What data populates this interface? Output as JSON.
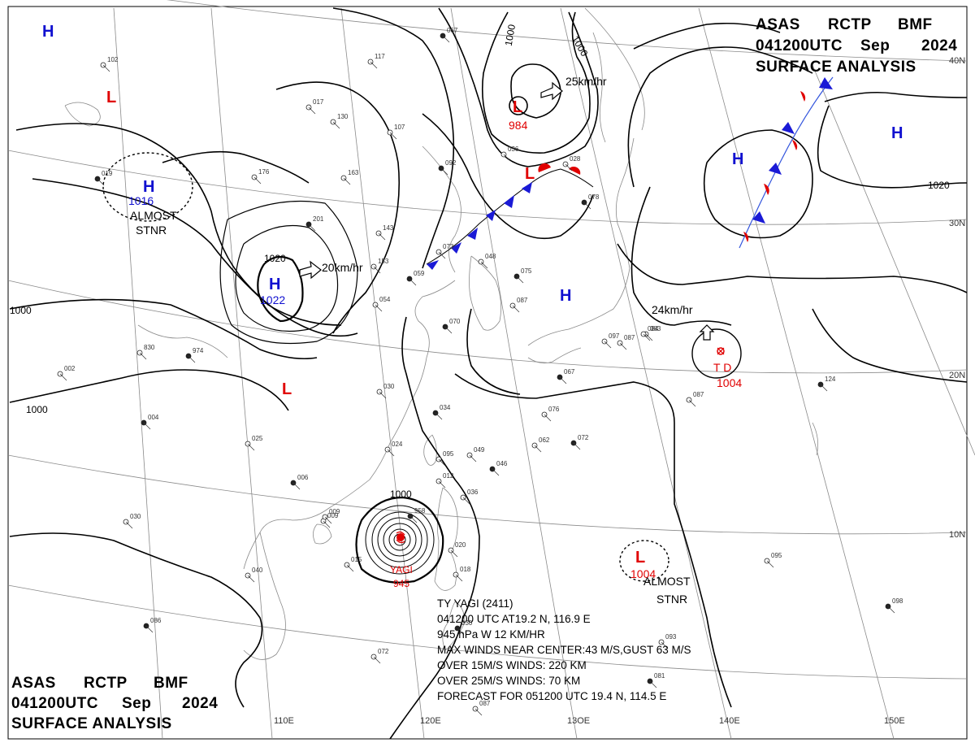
{
  "header": {
    "line1": [
      "ASAS",
      "RCTP",
      "BMF"
    ],
    "line2": [
      "041200UTC",
      "Sep",
      "2024"
    ],
    "line3": "SURFACE  ANALYSIS"
  },
  "lat_labels": [
    "40N",
    "30N",
    "20N",
    "10N"
  ],
  "lon_labels": [
    "110E",
    "120E",
    "13OE",
    "140E",
    "150E"
  ],
  "isobar_labels": [
    "1000",
    "1000",
    "1000",
    "1000",
    "1020",
    "1020",
    "1000"
  ],
  "systems": {
    "highs": [
      {
        "id": "h-nw",
        "label": "H"
      },
      {
        "id": "h-1016",
        "label": "H",
        "pressure": "1016"
      },
      {
        "id": "h-1022",
        "label": "H",
        "pressure": "1022"
      },
      {
        "id": "h-japan",
        "label": "H"
      },
      {
        "id": "h-pac1",
        "label": "H"
      },
      {
        "id": "h-pac2",
        "label": "H"
      }
    ],
    "lows": [
      {
        "id": "l-nw",
        "label": "L"
      },
      {
        "id": "l-984",
        "label": "L",
        "pressure": "984"
      },
      {
        "id": "l-front",
        "label": "L"
      },
      {
        "id": "l-china",
        "label": "L"
      },
      {
        "id": "l-1004",
        "label": "L",
        "pressure": "1004"
      }
    ],
    "td": {
      "label": "T D",
      "pressure": "1004"
    },
    "yagi": {
      "label": "YAGI",
      "pressure": "945"
    }
  },
  "annotations": {
    "almost1": "ALMOST",
    "stnr1": "STNR",
    "almost2": "ALMOST",
    "stnr2": "STNR"
  },
  "motions": [
    "25km/hr",
    "20km/hr",
    "24km/hr"
  ],
  "station_plots": [
    "067",
    "117",
    "107",
    "092",
    "036",
    "028",
    "078",
    "163",
    "176",
    "201",
    "143",
    "153",
    "059",
    "048",
    "073",
    "075",
    "087",
    "054",
    "070",
    "083",
    "087",
    "067",
    "084",
    "097",
    "124",
    "087",
    "076",
    "072",
    "062",
    "049",
    "046",
    "012",
    "036",
    "034",
    "030",
    "024",
    "006",
    "009",
    "015",
    "958",
    "020",
    "018",
    "030",
    "040",
    "030",
    "086",
    "072",
    "093",
    "081",
    "087",
    "095",
    "098",
    "102",
    "130",
    "974",
    "830",
    "002",
    "004",
    "025",
    "017",
    "019",
    "095",
    "009"
  ],
  "typhoon_info": {
    "line1": "TY  YAGI  (2411)",
    "line2": "041200 UTC  AT19.2 N, 116.9 E",
    "line3": "945 hPa W  12 KM/HR",
    "line4": "MAX WINDS NEAR CENTER:43 M/S,GUST 63 M/S",
    "line5": "OVER 15M/S WINDS: 220 KM",
    "line6": "OVER 25M/S WINDS: 70 KM",
    "line7": "FORECAST FOR 051200 UTC 19.4 N, 114.5 E"
  },
  "colors": {
    "high": "#1010d0",
    "low": "#e00000",
    "isobar": "#000000",
    "grid": "#8a8a8a",
    "coast": "#8a8a8a"
  }
}
